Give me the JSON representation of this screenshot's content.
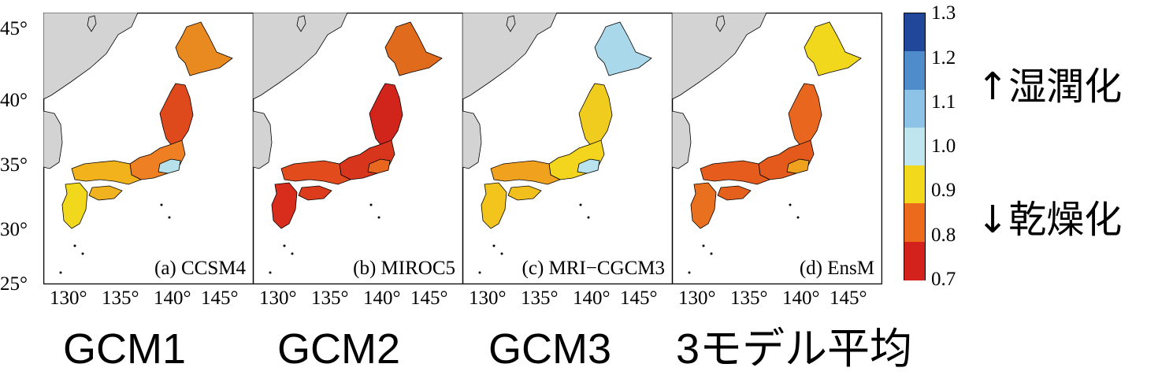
{
  "panels": [
    {
      "caption": "(a) CCSM4",
      "model": "GCM1",
      "fills": {
        "hokkaido": "#e88a1f",
        "honshu_n": "#de4a1c",
        "honshu_c": "#ee7f22",
        "honshu_w": "#f2b21c",
        "kyushu": "#f2d81c",
        "shikoku": "#f0b21e",
        "patch": "#b7e1ea"
      }
    },
    {
      "caption": "(b) MIROC5",
      "model": "GCM2",
      "fills": {
        "hokkaido": "#e06b1d",
        "honshu_n": "#d1251b",
        "honshu_c": "#d8361c",
        "honshu_w": "#e24b1c",
        "kyushu": "#d82d1c",
        "shikoku": "#dc3c1c",
        "patch": "#e8661e"
      }
    },
    {
      "caption": "(c) MRI−CGCM3",
      "model": "GCM3",
      "fills": {
        "hokkaido": "#a9d8ea",
        "honshu_n": "#f0cc1e",
        "honshu_c": "#f2d51c",
        "honshu_w": "#f0a21e",
        "kyushu": "#f2c41c",
        "shikoku": "#f2c01c",
        "patch": "#b9e3ee"
      }
    },
    {
      "caption": "(d) EnsM",
      "model": "3モデル平均",
      "fills": {
        "hokkaido": "#f2d81c",
        "honshu_n": "#e8661e",
        "honshu_c": "#e35a1c",
        "honshu_w": "#e55c1c",
        "kyushu": "#e8701e",
        "shikoku": "#e4601c",
        "patch": "#f0a21e"
      }
    }
  ],
  "latitude_labels": [
    "45°",
    "40°",
    "35°",
    "30°",
    "25°"
  ],
  "longitude_labels": [
    "130°",
    "135°",
    "140°",
    "145°"
  ],
  "colorbar": {
    "ticks": [
      "1.3",
      "1.2",
      "1.1",
      "1.0",
      "0.9",
      "0.8",
      "0.7"
    ],
    "colors": [
      "#21479a",
      "#4e8ccc",
      "#8ec3e8",
      "#bfe5ee",
      "#f2d91c",
      "#ec6a1c",
      "#d2221b"
    ]
  },
  "legend": {
    "wet": "↑湿潤化",
    "dry": "↓乾燥化"
  },
  "colors": {
    "land_gray": "#d3d3d3",
    "border": "#000000"
  }
}
